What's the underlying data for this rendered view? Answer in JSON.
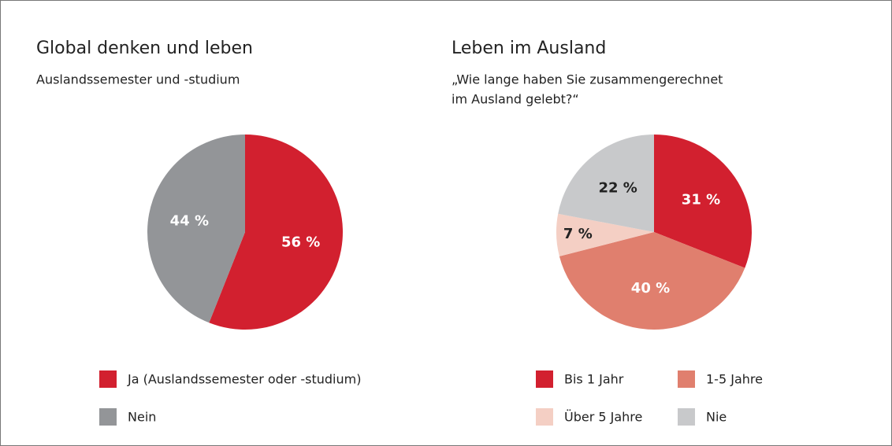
{
  "chart_data": [
    {
      "type": "pie",
      "title": "Global denken und leben",
      "subtitle": [
        "Auslandssemester und -studium"
      ],
      "categories": [
        "Ja (Auslandssemester oder -studium)",
        "Nein"
      ],
      "values": [
        56,
        44
      ],
      "value_labels": [
        "56 %",
        "44 %"
      ],
      "colors": [
        "#d2202f",
        "#939598"
      ]
    },
    {
      "type": "pie",
      "title": "Leben im Ausland",
      "subtitle": [
        "„Wie lange haben Sie zusammengerechnet",
        "im Ausland gelebt?“"
      ],
      "categories": [
        "Bis 1 Jahr",
        "1-5 Jahre",
        "Über 5 Jahre",
        "Nie"
      ],
      "values": [
        31,
        40,
        7,
        22
      ],
      "value_labels": [
        "31 %",
        "40 %",
        "7 %",
        "22 %"
      ],
      "colors": [
        "#d2202f",
        "#e07f6e",
        "#f4cfc4",
        "#c8c9cb"
      ]
    }
  ]
}
